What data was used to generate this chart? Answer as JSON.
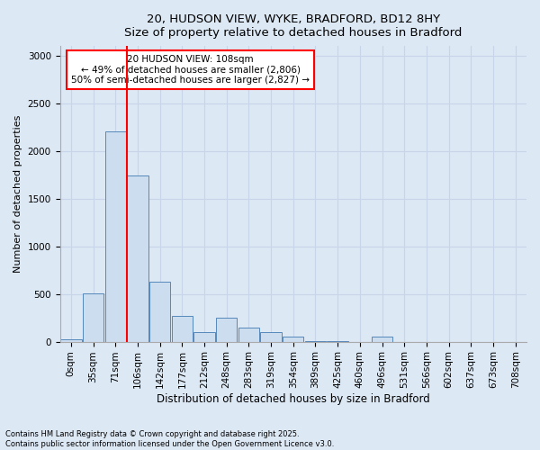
{
  "title_line1": "20, HUDSON VIEW, WYKE, BRADFORD, BD12 8HY",
  "title_line2": "Size of property relative to detached houses in Bradford",
  "xlabel": "Distribution of detached houses by size in Bradford",
  "ylabel": "Number of detached properties",
  "bar_labels": [
    "0sqm",
    "35sqm",
    "71sqm",
    "106sqm",
    "142sqm",
    "177sqm",
    "212sqm",
    "248sqm",
    "283sqm",
    "319sqm",
    "354sqm",
    "389sqm",
    "425sqm",
    "460sqm",
    "496sqm",
    "531sqm",
    "566sqm",
    "602sqm",
    "637sqm",
    "673sqm",
    "708sqm"
  ],
  "bar_values": [
    20,
    510,
    2200,
    1740,
    630,
    270,
    100,
    250,
    145,
    100,
    50,
    10,
    5,
    0,
    50,
    0,
    0,
    0,
    0,
    0,
    0
  ],
  "bar_color": "#ccddf0",
  "bar_edge_color": "#5588bb",
  "grid_color": "#c8d4e8",
  "background_color": "#dde8f5",
  "vline_color": "red",
  "annotation_text": "20 HUDSON VIEW: 108sqm\n← 49% of detached houses are smaller (2,806)\n50% of semi-detached houses are larger (2,827) →",
  "ylim": [
    0,
    3100
  ],
  "yticks": [
    0,
    500,
    1000,
    1500,
    2000,
    2500,
    3000
  ],
  "footnote1": "Contains HM Land Registry data © Crown copyright and database right 2025.",
  "footnote2": "Contains public sector information licensed under the Open Government Licence v3.0."
}
